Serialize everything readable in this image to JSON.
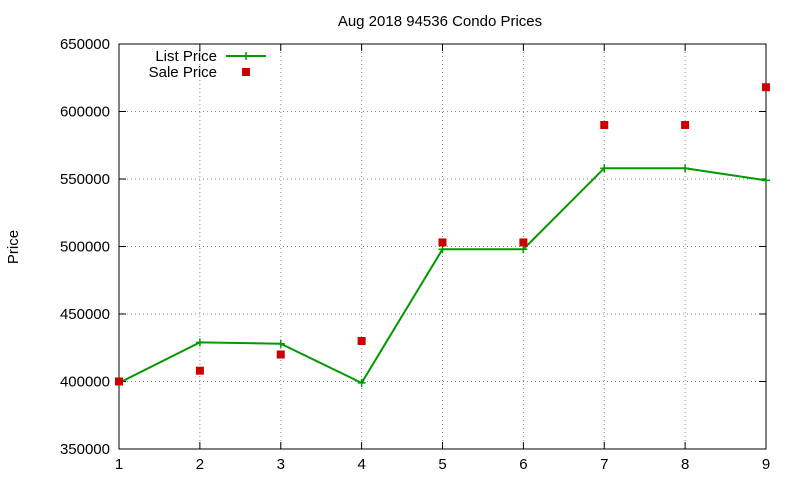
{
  "chart_data": {
    "type": "line",
    "title": "Aug 2018 94536 Condo Prices",
    "xlabel": "",
    "ylabel": "Price",
    "xlim": [
      1,
      9
    ],
    "ylim": [
      350000,
      650000
    ],
    "xticks": [
      "1",
      "2",
      "3",
      "4",
      "5",
      "6",
      "7",
      "8",
      "9"
    ],
    "yticks": [
      "350000",
      "400000",
      "450000",
      "500000",
      "550000",
      "600000",
      "650000"
    ],
    "grid": true,
    "legend_position": "top-left",
    "x": [
      1,
      2,
      3,
      4,
      5,
      6,
      7,
      8,
      9
    ],
    "series": [
      {
        "name": "List Price",
        "style": "line-points",
        "marker": "plus",
        "color": "#009900",
        "values": [
          399000,
          429000,
          428000,
          399000,
          498000,
          498000,
          558000,
          558000,
          549000
        ]
      },
      {
        "name": "Sale Price",
        "style": "points",
        "marker": "square",
        "color": "#cc0000",
        "values": [
          400000,
          408000,
          420000,
          430000,
          503000,
          503000,
          590000,
          590000,
          618000
        ]
      }
    ]
  }
}
